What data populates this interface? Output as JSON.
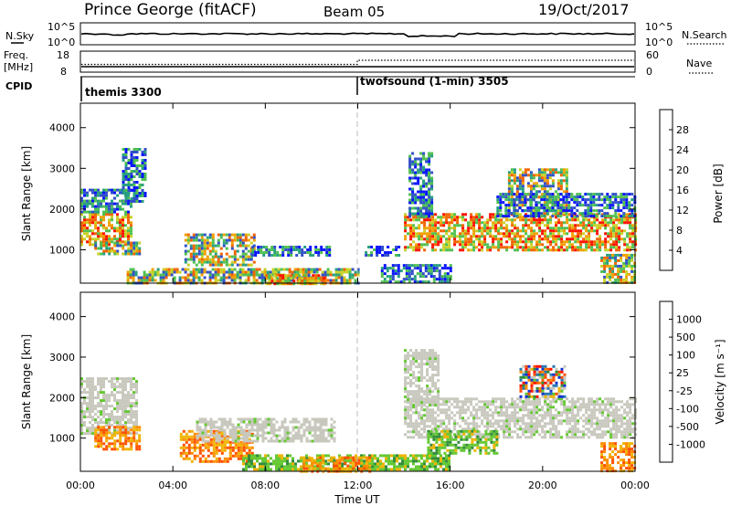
{
  "header": {
    "station": "Prince George (fitACF)",
    "beam": "Beam 05",
    "date": "19/Oct/2017"
  },
  "top_panels": {
    "nsky_label": "N.Sky",
    "nsky_ticks": [
      "10^5",
      "10^0"
    ],
    "nsearch_label": "N.Search",
    "nsearch_ticks": [
      "10^5",
      "10^0"
    ],
    "freq_label": "Freq.",
    "freq_unit": "[MHz]",
    "freq_ticks": [
      "18",
      "8"
    ],
    "nave_label": "Nave",
    "nave_ticks": [
      "60",
      "0"
    ],
    "cpid_label": "CPID",
    "cpid_segments": [
      {
        "label": "themis 3300",
        "start_hour": 0
      },
      {
        "label": "twofsound (1-min) 3505",
        "start_hour": 12
      }
    ]
  },
  "chart_data": [
    {
      "type": "heatmap",
      "name": "power",
      "ylabel": "Slant Range [km]",
      "xlabel": "",
      "ylim": [
        180,
        4600
      ],
      "yticks": [
        "1000",
        "2000",
        "3000",
        "4000"
      ],
      "colorbar": {
        "label": "Power [dB]",
        "ticks": [
          "4",
          "8",
          "12",
          "16",
          "20",
          "24",
          "28"
        ],
        "colors": [
          "#0a14ff",
          "#3250c8",
          "#28a080",
          "#50c050",
          "#c8d228",
          "#f0a000",
          "#f06400",
          "#ff1000"
        ]
      },
      "regions": [
        {
          "t0": 0.0,
          "t1": 2.2,
          "r0": 1100,
          "r1": 1900,
          "level": "high"
        },
        {
          "t0": 0.0,
          "t1": 2.2,
          "r0": 1900,
          "r1": 2500,
          "level": "low"
        },
        {
          "t0": 0.6,
          "t1": 2.6,
          "r0": 880,
          "r1": 1200,
          "level": "mid"
        },
        {
          "t0": 1.8,
          "t1": 2.8,
          "r0": 2200,
          "r1": 3500,
          "level": "low"
        },
        {
          "t0": 4.5,
          "t1": 7.5,
          "r0": 600,
          "r1": 1400,
          "level": "mid"
        },
        {
          "t0": 7.4,
          "t1": 10.8,
          "r0": 850,
          "r1": 1100,
          "level": "low"
        },
        {
          "t0": 2.0,
          "t1": 12.0,
          "r0": 180,
          "r1": 550,
          "level": "mid"
        },
        {
          "t0": 8.0,
          "t1": 10.5,
          "r0": 180,
          "r1": 400,
          "level": "high"
        },
        {
          "t0": 12.3,
          "t1": 13.8,
          "r0": 850,
          "r1": 1100,
          "level": "low"
        },
        {
          "t0": 13.0,
          "t1": 16.0,
          "r0": 200,
          "r1": 650,
          "level": "low"
        },
        {
          "t0": 14.0,
          "t1": 24.0,
          "r0": 1000,
          "r1": 1900,
          "level": "high"
        },
        {
          "t0": 14.2,
          "t1": 15.2,
          "r0": 1800,
          "r1": 3400,
          "level": "low"
        },
        {
          "t0": 18.5,
          "t1": 21.0,
          "r0": 1900,
          "r1": 3000,
          "level": "mid"
        },
        {
          "t0": 18.0,
          "t1": 24.0,
          "r0": 1850,
          "r1": 2400,
          "level": "low"
        },
        {
          "t0": 22.5,
          "t1": 24.0,
          "r0": 200,
          "r1": 900,
          "level": "mid"
        }
      ]
    },
    {
      "type": "heatmap",
      "name": "velocity",
      "ylabel": "Slant Range [km]",
      "xlabel": "Time UT",
      "ylim": [
        180,
        4600
      ],
      "yticks": [
        "1000",
        "2000",
        "3000",
        "4000"
      ],
      "xticks": [
        "00:00",
        "04:00",
        "08:00",
        "12:00",
        "16:00",
        "20:00",
        "00:00"
      ],
      "colorbar": {
        "label": "Velocity [m s⁻¹]",
        "ticks": [
          "1000",
          "500",
          "100",
          "25",
          "-25",
          "-100",
          "-500",
          "-1000"
        ],
        "colors": [
          "#1432d2",
          "#2878b4",
          "#328c3c",
          "#64c832",
          "#c8c8be",
          "#f0b400",
          "#ff8c00",
          "#ff5000",
          "#ff1000"
        ]
      },
      "regions": [
        {
          "t0": 0.0,
          "t1": 2.4,
          "r0": 1100,
          "r1": 2500,
          "level": "ground"
        },
        {
          "t0": 0.6,
          "t1": 2.6,
          "r0": 700,
          "r1": 1300,
          "level": "neg"
        },
        {
          "t0": 4.3,
          "t1": 7.5,
          "r0": 400,
          "r1": 1200,
          "level": "neg"
        },
        {
          "t0": 5.0,
          "t1": 11.0,
          "r0": 900,
          "r1": 1500,
          "level": "ground"
        },
        {
          "t0": 7.0,
          "t1": 16.0,
          "r0": 200,
          "r1": 600,
          "level": "pos"
        },
        {
          "t0": 9.5,
          "t1": 12.5,
          "r0": 200,
          "r1": 550,
          "level": "neg"
        },
        {
          "t0": 14.0,
          "t1": 24.0,
          "r0": 1000,
          "r1": 2000,
          "level": "ground"
        },
        {
          "t0": 14.0,
          "t1": 15.5,
          "r0": 1800,
          "r1": 3200,
          "level": "ground"
        },
        {
          "t0": 15.0,
          "t1": 18.0,
          "r0": 600,
          "r1": 1200,
          "level": "pos"
        },
        {
          "t0": 19.0,
          "t1": 21.0,
          "r0": 2000,
          "r1": 2800,
          "level": "mixed"
        },
        {
          "t0": 22.5,
          "t1": 24.0,
          "r0": 200,
          "r1": 900,
          "level": "neg"
        }
      ]
    }
  ]
}
